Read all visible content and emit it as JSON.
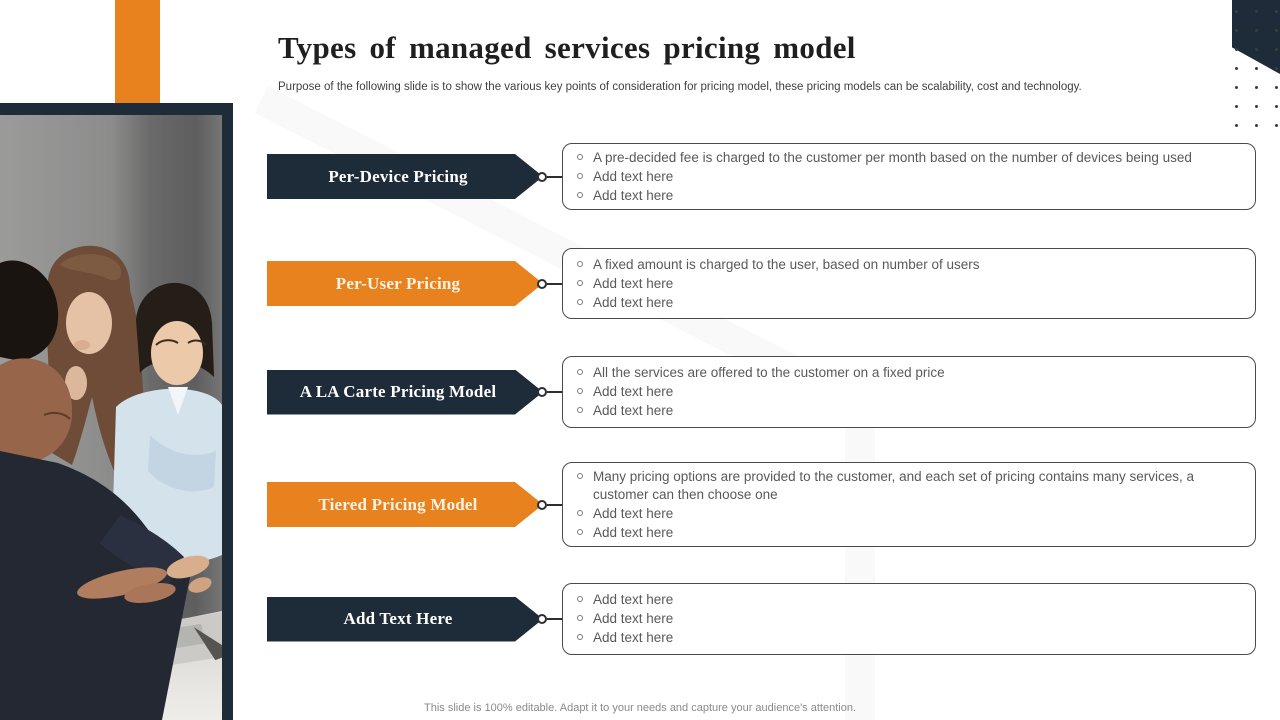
{
  "slide": {
    "title": "Types of managed services pricing model",
    "subtitle": "Purpose of the following slide is to show the various key points of consideration for pricing model, these pricing models can be scalability, cost and technology.",
    "footer": "This slide is 100% editable. Adapt it to your needs and capture your audience's attention."
  },
  "colors": {
    "navy": "#1E2B38",
    "orange": "#E8821F",
    "box_border": "#4A4A4A",
    "body_text": "#595959"
  },
  "rows": [
    {
      "label": "Per-Device Pricing",
      "variant": "navy",
      "items": [
        "A pre-decided fee is charged to the customer per month based on the number of devices being used",
        "Add text here",
        "Add text here"
      ]
    },
    {
      "label": "Per-User Pricing",
      "variant": "orange",
      "items": [
        "A fixed amount is charged to the user, based on number of users",
        "Add text here",
        "Add text here"
      ]
    },
    {
      "label": "A LA Carte Pricing Model",
      "variant": "navy",
      "items": [
        "All the services are offered to the customer on a fixed price",
        "Add text here",
        "Add text here"
      ]
    },
    {
      "label": "Tiered Pricing Model",
      "variant": "orange",
      "items": [
        "Many pricing options are provided to the customer, and each set of pricing contains many services, a customer can then choose one",
        "Add text here",
        "Add text here"
      ]
    },
    {
      "label": "Add Text Here",
      "variant": "navy",
      "items": [
        "Add text here",
        "Add text here",
        "Add text here"
      ]
    }
  ],
  "photo": {
    "description": "three-colleagues-looking-at-laptop"
  }
}
